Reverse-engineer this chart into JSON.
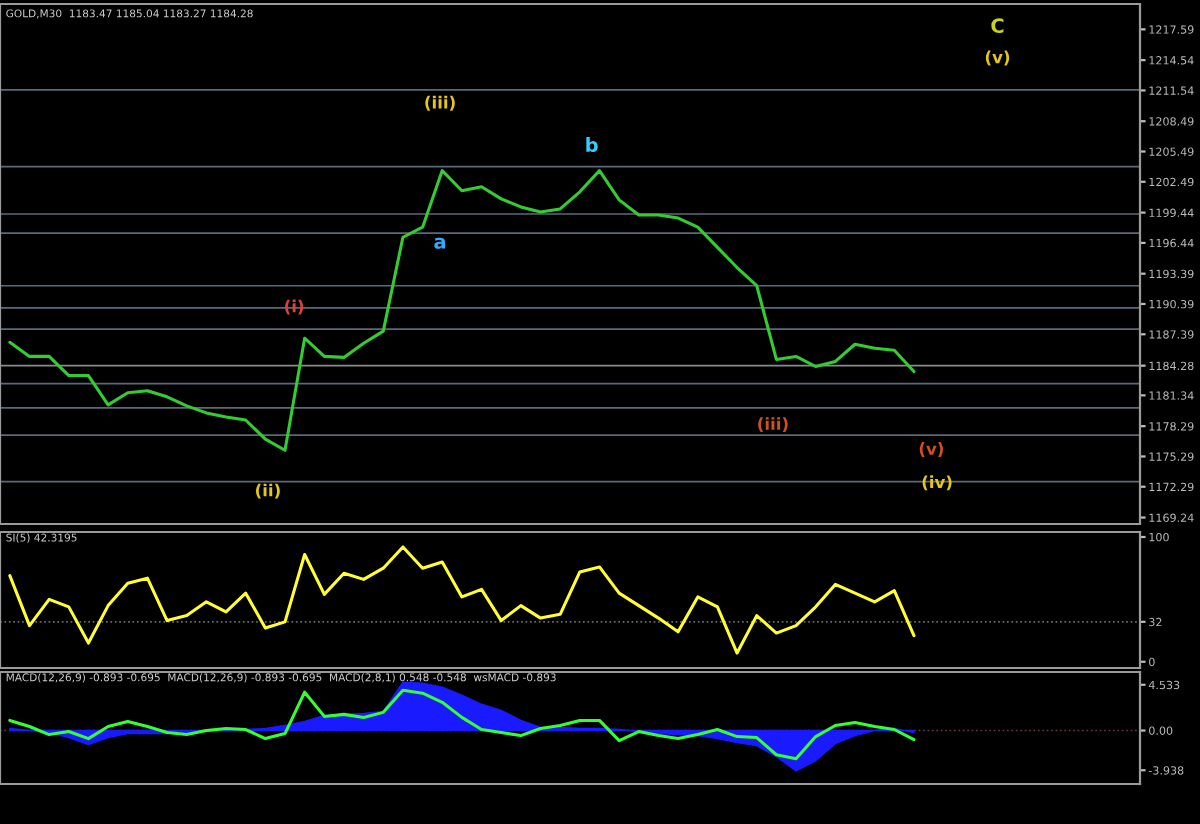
{
  "chart_data": [
    {
      "type": "line",
      "title": "GOLD,M30  1183.47 1185.04 1183.27 1184.28",
      "ylim": [
        1168.6,
        1220.1
      ],
      "categories": [
        null,
        null,
        null,
        null,
        null,
        null,
        null,
        null,
        null,
        null,
        null,
        null,
        null,
        null,
        null,
        null,
        null,
        null,
        null,
        null,
        null,
        null,
        null,
        null,
        null,
        null,
        null,
        null,
        null,
        null,
        null,
        null,
        null,
        null,
        null,
        null,
        null,
        null,
        null,
        null,
        null,
        null,
        null,
        null,
        null,
        null,
        null,
        null,
        null,
        null,
        null,
        null,
        null,
        null,
        null,
        null,
        null,
        null
      ],
      "yticks": [
        1217.59,
        1214.54,
        1211.54,
        1208.49,
        1205.49,
        1202.49,
        1199.44,
        1196.44,
        1193.39,
        1190.39,
        1187.39,
        1184.28,
        1181.34,
        1178.29,
        1175.29,
        1172.29,
        1169.24
      ],
      "series": [
        {
          "color": "#33cc33",
          "values": [
            1186.6,
            1185.2,
            1185.2,
            1183.3,
            1183.3,
            1180.4,
            1181.6,
            1181.8,
            1181.2,
            1180.3,
            1179.6,
            1179.2,
            1178.9,
            1177.0,
            1175.9,
            1187.0,
            1185.2,
            1185.1,
            1186.5,
            1187.7,
            1197.0,
            1198.0,
            1203.6,
            1201.6,
            1202.0,
            1200.8,
            1200.0,
            1199.5,
            1199.8,
            1201.5,
            1203.6,
            1200.7,
            1199.2,
            1199.2,
            1198.9,
            1198.0,
            1196.0,
            1194.0,
            1192.2,
            1184.9,
            1185.2,
            1184.2,
            1184.7,
            1186.4,
            1186.0,
            1185.8,
            1183.7,
            null,
            null,
            null,
            null,
            null,
            null,
            null,
            null,
            null,
            null,
            null
          ]
        }
      ],
      "ref_lines": [
        {
          "axis": "y",
          "value": 1211.6,
          "label": null,
          "color": "#5a6a7a"
        },
        {
          "axis": "y",
          "value": 1204.0,
          "label": null,
          "color": "#5a6a7a"
        },
        {
          "axis": "y",
          "value": 1199.3,
          "label": null,
          "color": "#5a6a7a"
        },
        {
          "axis": "y",
          "value": 1197.4,
          "label": null,
          "color": "#5a6a7a"
        },
        {
          "axis": "y",
          "value": 1192.2,
          "label": null,
          "color": "#5a6a7a"
        },
        {
          "axis": "y",
          "value": 1190.0,
          "label": null,
          "color": "#5a6a7a"
        },
        {
          "axis": "y",
          "value": 1187.9,
          "label": null,
          "color": "#5a6a7a"
        },
        {
          "axis": "y",
          "value": 1184.28,
          "label": null,
          "color": "#8a8a8a"
        },
        {
          "axis": "y",
          "value": 1182.5,
          "label": null,
          "color": "#5a6a7a"
        },
        {
          "axis": "y",
          "value": 1180.1,
          "label": null,
          "color": "#5a6a7a"
        },
        {
          "axis": "y",
          "value": 1177.4,
          "label": null,
          "color": "#5a6a7a"
        },
        {
          "axis": "y",
          "value": 1172.8,
          "label": null,
          "color": "#5a6a7a"
        }
      ],
      "annotations": [
        "(iii)",
        "(ii)",
        "(i)",
        "a",
        "b",
        "C",
        "(v)",
        "(iv)",
        "(v)",
        "(iii)"
      ]
    },
    {
      "type": "line",
      "title": "SI(5) 42.3195",
      "ylim": [
        -5,
        104
      ],
      "yticks": [
        0,
        32,
        100
      ],
      "categories": [
        null,
        null,
        null,
        null,
        null,
        null,
        null,
        null,
        null,
        null,
        null,
        null,
        null,
        null,
        null,
        null,
        null,
        null,
        null,
        null,
        null,
        null,
        null,
        null,
        null,
        null,
        null,
        null,
        null,
        null,
        null,
        null,
        null,
        null,
        null,
        null,
        null,
        null,
        null,
        null,
        null,
        null,
        null,
        null,
        null,
        null,
        null,
        null,
        null,
        null,
        null,
        null,
        null,
        null,
        null,
        null,
        null,
        null
      ],
      "ref_lines": [
        {
          "axis": "y",
          "value": 32,
          "label": null,
          "color": "#6a6a6a",
          "line_style": "dotted"
        }
      ],
      "series": [
        {
          "color": "#ffff33",
          "values": [
            69,
            29,
            50,
            44,
            15,
            45,
            63,
            67,
            33,
            37,
            48,
            40,
            55,
            27,
            32,
            86,
            54,
            71,
            66,
            75,
            92,
            75,
            80,
            52,
            58,
            33,
            45,
            35,
            38,
            72,
            76,
            55,
            45,
            35,
            24,
            52,
            44,
            7,
            37,
            23,
            29,
            44,
            62,
            55,
            48,
            57,
            21,
            null,
            null,
            null,
            null,
            null,
            null,
            null,
            null,
            null,
            null,
            null
          ]
        }
      ]
    },
    {
      "type": "line",
      "title": "MACD(12,26,9) -0.893 -0.695  MACD(12,26,9) -0.893 -0.695  MACD(2,8,1) 0.548 -0.548  wsMACD -0.893",
      "ylim": [
        -5.3,
        5.8
      ],
      "yticks": [
        4.533,
        {
          "value": 0,
          "label": "0.00"
        },
        -3.938
      ],
      "categories": [
        null,
        null,
        null,
        null,
        null,
        null,
        null,
        null,
        null,
        null,
        null,
        null,
        null,
        null,
        null,
        null,
        null,
        null,
        null,
        null,
        null,
        null,
        null,
        null,
        null,
        null,
        null,
        null,
        null,
        null,
        null,
        null,
        null,
        null,
        null,
        null,
        null,
        null,
        null,
        null,
        null,
        null,
        null,
        null,
        null,
        null,
        null,
        null,
        null,
        null,
        null,
        null,
        null,
        null,
        null,
        null,
        null,
        null
      ],
      "ref_lines": [
        {
          "axis": "y",
          "value": 0,
          "label": null,
          "color": "#6a3a3a",
          "line_style": "dotted"
        }
      ],
      "series": [
        {
          "type": "area",
          "color": "#1a1aff",
          "values": [
            0.2,
            0.0,
            -0.2,
            -0.7,
            -1.4,
            -0.7,
            -0.3,
            -0.3,
            -0.3,
            -0.2,
            -0.1,
            0,
            0.1,
            0.2,
            0.5,
            0.9,
            1.5,
            1.6,
            1.7,
            1.9,
            4.8,
            4.7,
            4.3,
            3.5,
            2.6,
            2.0,
            1.0,
            0.3,
            0.3,
            0.2,
            0.2,
            0.1,
            -0.1,
            -0.3,
            -0.4,
            -0.5,
            -0.8,
            -1.2,
            -1.5,
            -2.6,
            -4.0,
            -3.0,
            -1.3,
            -0.5,
            0,
            0.2,
            -0.2,
            null,
            null,
            null,
            null,
            null,
            null,
            null,
            null,
            null,
            null,
            null
          ]
        },
        {
          "color": "#33ff33",
          "values": [
            1.0,
            0.4,
            -0.4,
            -0.1,
            -0.8,
            0.4,
            0.9,
            0.4,
            -0.2,
            -0.4,
            0,
            0.2,
            0.1,
            -0.8,
            -0.3,
            3.8,
            1.4,
            1.6,
            1.3,
            1.8,
            4.0,
            3.7,
            2.8,
            1.3,
            0.1,
            -0.2,
            -0.5,
            0.2,
            0.5,
            1.0,
            1.0,
            -1.0,
            -0.1,
            -0.5,
            -0.8,
            -0.4,
            0.1,
            -0.6,
            -0.7,
            -2.4,
            -2.8,
            -0.6,
            0.5,
            0.8,
            0.4,
            0.1,
            -0.9,
            null,
            null,
            null,
            null,
            null,
            null,
            null,
            null,
            null,
            null,
            null
          ]
        }
      ]
    }
  ]
}
